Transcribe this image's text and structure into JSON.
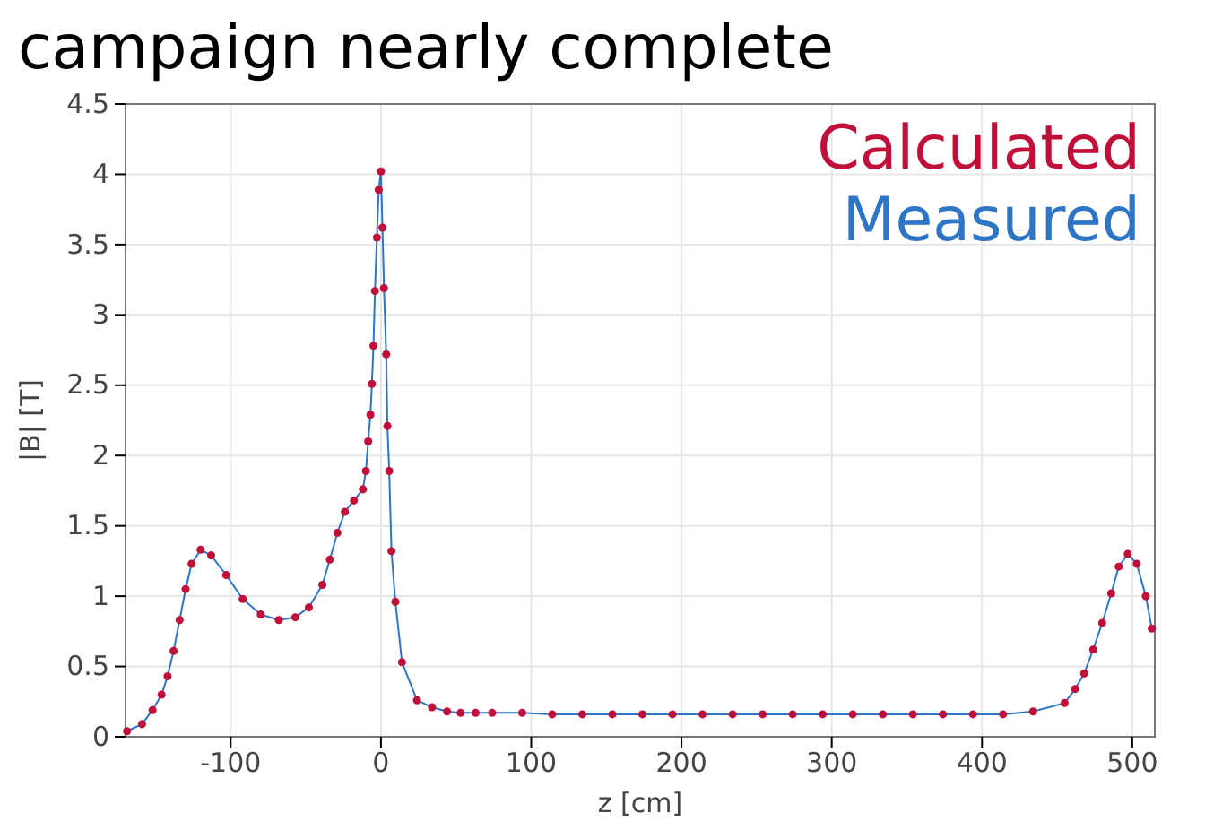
{
  "chart_data": {
    "type": "scatter",
    "title": "campaign nearly complete",
    "xlabel": "z [cm]",
    "ylabel": "|B| [T]",
    "xlim": [
      -170,
      515
    ],
    "xticks": [
      -100,
      0,
      100,
      200,
      300,
      400,
      500
    ],
    "ylim": [
      0,
      4.5
    ],
    "yticks": [
      0,
      0.5,
      1,
      1.5,
      2,
      2.5,
      3,
      3.5,
      4,
      4.5
    ],
    "grid": true,
    "legend": "top right",
    "marker": "circle",
    "x": [
      -169,
      -159,
      -152,
      -146,
      -142,
      -138,
      -134,
      -130,
      -126,
      -120,
      -113,
      -103,
      -92,
      -80,
      -68,
      -57,
      -48,
      -39,
      -34,
      -29,
      -24,
      -18,
      -12,
      -10,
      -8.5,
      -7,
      -6,
      -5,
      -4,
      -2.7,
      -1.5,
      0,
      1,
      2,
      3.5,
      4.3,
      5.5,
      7,
      9.6,
      14,
      24,
      34,
      44,
      53,
      63,
      74,
      94,
      114,
      134,
      154,
      174,
      194,
      214,
      234,
      254,
      274,
      294,
      314,
      334,
      354,
      374,
      394,
      414,
      434,
      455,
      462,
      468,
      474,
      480,
      486,
      491,
      497,
      503,
      509,
      513
    ],
    "series": [
      {
        "name": "Calculated",
        "color": "#c0103a",
        "values": [
          0.04,
          0.09,
          0.19,
          0.3,
          0.43,
          0.61,
          0.83,
          1.05,
          1.23,
          1.33,
          1.29,
          1.15,
          0.98,
          0.87,
          0.83,
          0.85,
          0.92,
          1.08,
          1.26,
          1.45,
          1.6,
          1.68,
          1.76,
          1.89,
          2.1,
          2.29,
          2.51,
          2.78,
          3.17,
          3.55,
          3.89,
          4.02,
          3.62,
          3.19,
          2.72,
          2.21,
          1.89,
          1.32,
          0.96,
          0.53,
          0.26,
          0.21,
          0.18,
          0.17,
          0.17,
          0.17,
          0.17,
          0.16,
          0.16,
          0.16,
          0.16,
          0.16,
          0.16,
          0.16,
          0.16,
          0.16,
          0.16,
          0.16,
          0.16,
          0.16,
          0.16,
          0.16,
          0.16,
          0.18,
          0.24,
          0.34,
          0.45,
          0.62,
          0.81,
          1.02,
          1.21,
          1.3,
          1.23,
          1.0,
          0.77
        ]
      },
      {
        "name": "Measured",
        "type": "line",
        "marker": "none",
        "color": "#2e75c6",
        "values": [
          0.04,
          0.09,
          0.19,
          0.3,
          0.43,
          0.61,
          0.83,
          1.05,
          1.23,
          1.33,
          1.29,
          1.15,
          0.98,
          0.87,
          0.83,
          0.85,
          0.92,
          1.08,
          1.26,
          1.45,
          1.6,
          1.68,
          1.76,
          1.89,
          2.1,
          2.29,
          2.51,
          2.78,
          3.17,
          3.55,
          3.89,
          4.02,
          3.62,
          3.19,
          2.72,
          2.21,
          1.89,
          1.32,
          0.96,
          0.53,
          0.26,
          0.21,
          0.18,
          0.17,
          0.17,
          0.17,
          0.17,
          0.16,
          0.16,
          0.16,
          0.16,
          0.16,
          0.16,
          0.16,
          0.16,
          0.16,
          0.16,
          0.16,
          0.16,
          0.16,
          0.16,
          0.16,
          0.16,
          0.18,
          0.24,
          0.34,
          0.45,
          0.62,
          0.81,
          1.02,
          1.21,
          1.3,
          1.23,
          1.0,
          0.77
        ]
      }
    ]
  }
}
